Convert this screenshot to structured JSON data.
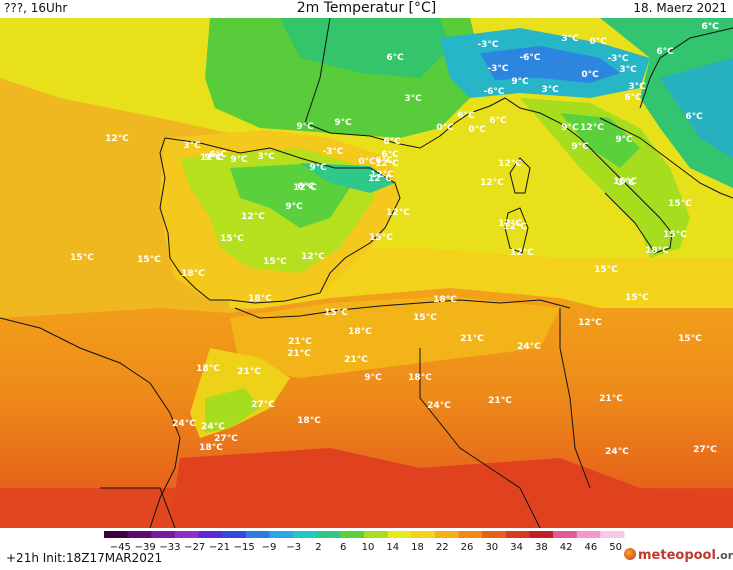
{
  "header": {
    "left": "???, 16Uhr",
    "title": "2m Temperatur [°C]",
    "right": "18. Maerz 2021"
  },
  "map_labels": [
    {
      "id": "l1",
      "text": "6°C"
    },
    {
      "id": "l2",
      "text": "6°C"
    },
    {
      "id": "l3",
      "text": "3°C"
    },
    {
      "id": "l4",
      "text": "0°C"
    },
    {
      "id": "l5",
      "text": "-6°C"
    },
    {
      "id": "l6",
      "text": "-3°C"
    },
    {
      "id": "l7",
      "text": "6°C"
    },
    {
      "id": "l8",
      "text": "6°C"
    },
    {
      "id": "l9",
      "text": "-3°C"
    },
    {
      "id": "l10",
      "text": "9°C"
    },
    {
      "id": "l11",
      "text": "3°C"
    },
    {
      "id": "l12",
      "text": "0°C"
    },
    {
      "id": "l13",
      "text": "-3°C"
    },
    {
      "id": "l14",
      "text": "3°C"
    },
    {
      "id": "l15",
      "text": "-6°C"
    },
    {
      "id": "l16",
      "text": "3°C"
    },
    {
      "id": "l17",
      "text": "6°C"
    },
    {
      "id": "l18",
      "text": "3°C"
    },
    {
      "id": "l19",
      "text": "0°C"
    },
    {
      "id": "l20",
      "text": "6°C"
    },
    {
      "id": "l21",
      "text": "9°C"
    },
    {
      "id": "l22",
      "text": "9°C"
    },
    {
      "id": "l23",
      "text": "0°C"
    },
    {
      "id": "l24",
      "text": "6°C"
    },
    {
      "id": "l25",
      "text": "6°C"
    },
    {
      "id": "l26",
      "text": "9°C"
    },
    {
      "id": "l27",
      "text": "12°C"
    },
    {
      "id": "l28",
      "text": "6°C"
    },
    {
      "id": "l29",
      "text": "12°C"
    },
    {
      "id": "l30",
      "text": "9°C"
    },
    {
      "id": "l31",
      "text": "3°C"
    },
    {
      "id": "l32",
      "text": "3°C"
    },
    {
      "id": "l33",
      "text": "6°C"
    },
    {
      "id": "l34",
      "text": "-3°C"
    },
    {
      "id": "l35",
      "text": "0°C"
    },
    {
      "id": "l36",
      "text": "6°C"
    },
    {
      "id": "l37",
      "text": "9°C"
    },
    {
      "id": "l38",
      "text": "9°C"
    },
    {
      "id": "l39",
      "text": "12°C"
    },
    {
      "id": "l40",
      "text": "6°C"
    },
    {
      "id": "l41",
      "text": "12°C"
    },
    {
      "id": "l42",
      "text": "9°C"
    },
    {
      "id": "l43",
      "text": "12°C"
    },
    {
      "id": "l44",
      "text": "12°C"
    },
    {
      "id": "l45",
      "text": "12°C"
    },
    {
      "id": "l46",
      "text": "15°C"
    },
    {
      "id": "l47",
      "text": "12°C"
    },
    {
      "id": "l48",
      "text": "12°C"
    },
    {
      "id": "l49",
      "text": "3°C"
    },
    {
      "id": "l50",
      "text": "9°C"
    },
    {
      "id": "l51",
      "text": "15°C"
    },
    {
      "id": "l52",
      "text": "15°C"
    },
    {
      "id": "l53",
      "text": "18°C"
    },
    {
      "id": "l54",
      "text": "12°C"
    },
    {
      "id": "l55",
      "text": "12°C"
    },
    {
      "id": "l56",
      "text": "12°C"
    },
    {
      "id": "l57",
      "text": "6°C"
    },
    {
      "id": "l58",
      "text": "9°C"
    },
    {
      "id": "l59",
      "text": "12°C"
    },
    {
      "id": "l60",
      "text": "15°C"
    },
    {
      "id": "l61",
      "text": "15°C"
    },
    {
      "id": "l62",
      "text": "12°C"
    },
    {
      "id": "l63",
      "text": "15°C"
    },
    {
      "id": "l64",
      "text": "15°C"
    },
    {
      "id": "l65",
      "text": "18°C"
    },
    {
      "id": "l66",
      "text": "15°C"
    },
    {
      "id": "l67",
      "text": "15°C"
    },
    {
      "id": "l68",
      "text": "15°C"
    },
    {
      "id": "l69",
      "text": "12°C"
    },
    {
      "id": "l70",
      "text": "18°C"
    },
    {
      "id": "l71",
      "text": "18°C"
    },
    {
      "id": "l72",
      "text": "15°C"
    },
    {
      "id": "l73",
      "text": "15°C"
    },
    {
      "id": "l74",
      "text": "18°C"
    },
    {
      "id": "l75",
      "text": "12°C"
    },
    {
      "id": "l76",
      "text": "15°C"
    },
    {
      "id": "l77",
      "text": "21°C"
    },
    {
      "id": "l78",
      "text": "21°C"
    },
    {
      "id": "l79",
      "text": "21°C"
    },
    {
      "id": "l80",
      "text": "18°C"
    },
    {
      "id": "l81",
      "text": "21°C"
    },
    {
      "id": "l82",
      "text": "9°C"
    },
    {
      "id": "l83",
      "text": "18°C"
    },
    {
      "id": "l84",
      "text": "21°C"
    },
    {
      "id": "l85",
      "text": "24°C"
    },
    {
      "id": "l86",
      "text": "27°C"
    },
    {
      "id": "l87",
      "text": "24°C"
    },
    {
      "id": "l88",
      "text": "21°C"
    },
    {
      "id": "l89",
      "text": "21°C"
    },
    {
      "id": "l90",
      "text": "24°C"
    },
    {
      "id": "l91",
      "text": "24°C"
    },
    {
      "id": "l92",
      "text": "27°C"
    },
    {
      "id": "l93",
      "text": "18°C"
    },
    {
      "id": "l94",
      "text": "18°C"
    },
    {
      "id": "l95",
      "text": "24°C"
    },
    {
      "id": "l96",
      "text": "27°C"
    }
  ],
  "legend": {
    "ticks": [
      "−45",
      "−39",
      "−33",
      "−27",
      "−21",
      "−15",
      "−9",
      "−3",
      "2",
      "6",
      "10",
      "14",
      "18",
      "22",
      "26",
      "30",
      "34",
      "38",
      "42",
      "46",
      "50"
    ],
    "colors": [
      "#3a003f",
      "#5b0a6e",
      "#7a1a9a",
      "#8f2fc8",
      "#5a2bd6",
      "#3448e0",
      "#2c7be0",
      "#27a8e8",
      "#22c9c0",
      "#2ec98a",
      "#5ad13c",
      "#a6dd1f",
      "#e8e81a",
      "#f5d31a",
      "#f5b016",
      "#f08a14",
      "#e8601a",
      "#d83a22",
      "#c0202a",
      "#e05a9a",
      "#f29ad0",
      "#f7c8e8"
    ]
  },
  "footer": {
    "run": "+21h  Init:18Z17MAR2021",
    "logo": "meteopool",
    "logo_suffix": ".org"
  }
}
